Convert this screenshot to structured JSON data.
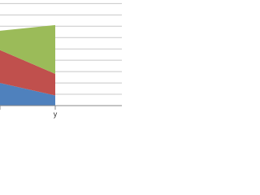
{
  "chart_data": {
    "type": "area",
    "stacked": true,
    "categories": [
      null,
      "y"
    ],
    "series": [
      {
        "color": "#4f81bd",
        "values": [
          2.0,
          0.9
        ]
      },
      {
        "color": "#c0504d",
        "values": [
          2.9,
          1.9
        ]
      },
      {
        "color": "#9bbb59",
        "values": [
          1.7,
          4.3
        ]
      }
    ],
    "ylim": [
      0,
      9.3
    ],
    "yticks": [
      1,
      2,
      3,
      4,
      5,
      6,
      7,
      8,
      9
    ],
    "grid": true
  }
}
